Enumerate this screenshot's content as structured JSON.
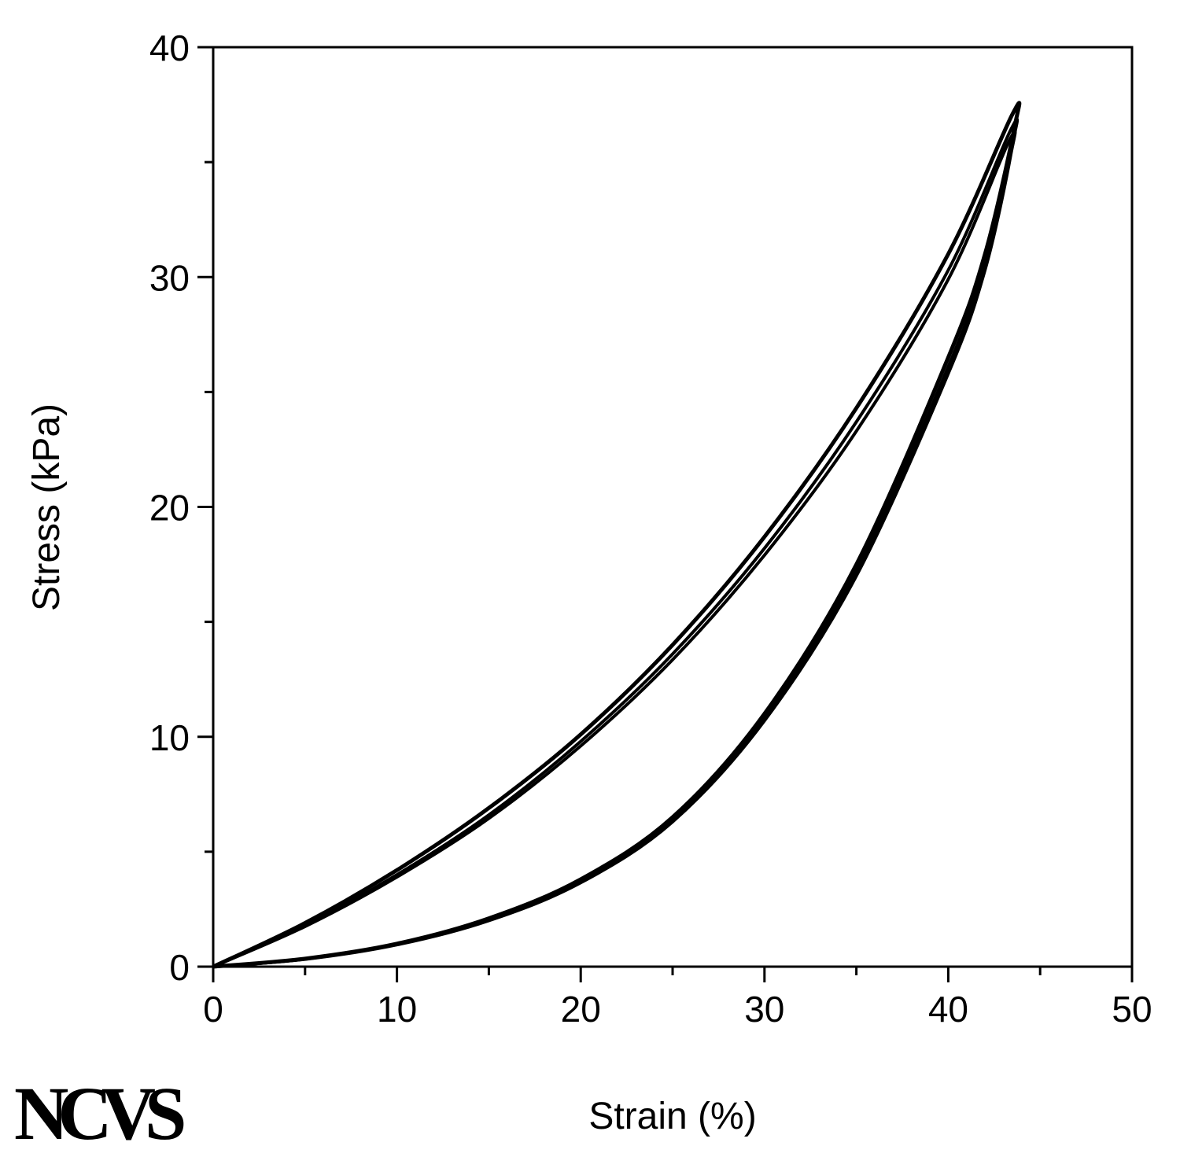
{
  "logo": "NCVS",
  "chart_data": {
    "type": "line",
    "title": "",
    "xlabel": "Strain (%)",
    "ylabel": "Stress (kPa)",
    "xlim": [
      0,
      50
    ],
    "ylim": [
      0,
      40
    ],
    "x_ticks": [
      0,
      10,
      20,
      30,
      40,
      50
    ],
    "y_ticks": [
      0,
      10,
      20,
      30,
      40
    ],
    "x_minor_step": 5,
    "y_minor_step": 5,
    "grid": false,
    "legend": "none",
    "series": [
      {
        "values": [
          [
            0,
            0
          ],
          [
            5,
            1.9
          ],
          [
            10,
            4.2
          ],
          [
            15,
            6.9
          ],
          [
            20,
            10.1
          ],
          [
            25,
            14.0
          ],
          [
            30,
            18.7
          ],
          [
            35,
            24.3
          ],
          [
            40,
            31.0
          ],
          [
            43.5,
            37.1
          ]
        ],
        "return": [
          [
            43.6,
            36.5
          ],
          [
            42,
            31.0
          ],
          [
            40,
            26.5
          ],
          [
            35,
            17.5
          ],
          [
            30,
            11.0
          ],
          [
            25,
            6.5
          ],
          [
            20,
            3.8
          ],
          [
            15,
            2.1
          ],
          [
            10,
            1.0
          ],
          [
            5,
            0.35
          ],
          [
            0,
            0
          ]
        ]
      },
      {
        "values": [
          [
            0,
            0
          ],
          [
            5,
            1.8
          ],
          [
            10,
            4.0
          ],
          [
            15,
            6.6
          ],
          [
            20,
            9.8
          ],
          [
            25,
            13.6
          ],
          [
            30,
            18.2
          ],
          [
            35,
            23.7
          ],
          [
            40,
            30.3
          ],
          [
            43.4,
            36.4
          ]
        ],
        "return": [
          [
            43.5,
            35.8
          ],
          [
            42,
            30.6
          ],
          [
            40,
            26.1
          ],
          [
            35,
            17.2
          ],
          [
            30,
            10.8
          ],
          [
            25,
            6.4
          ],
          [
            20,
            3.7
          ],
          [
            15,
            2.05
          ],
          [
            10,
            0.98
          ],
          [
            5,
            0.33
          ],
          [
            0,
            0
          ]
        ]
      },
      {
        "values": [
          [
            0,
            0
          ],
          [
            5,
            1.75
          ],
          [
            10,
            3.9
          ],
          [
            15,
            6.45
          ],
          [
            20,
            9.6
          ],
          [
            25,
            13.35
          ],
          [
            30,
            17.9
          ],
          [
            35,
            23.3
          ],
          [
            40,
            29.9
          ],
          [
            43.3,
            35.9
          ]
        ],
        "return": [
          [
            43.4,
            35.3
          ],
          [
            42,
            30.3
          ],
          [
            40,
            25.8
          ],
          [
            35,
            17.0
          ],
          [
            30,
            10.7
          ],
          [
            25,
            6.3
          ],
          [
            20,
            3.65
          ],
          [
            15,
            2.0
          ],
          [
            10,
            0.95
          ],
          [
            5,
            0.32
          ],
          [
            0,
            0
          ]
        ]
      }
    ]
  }
}
